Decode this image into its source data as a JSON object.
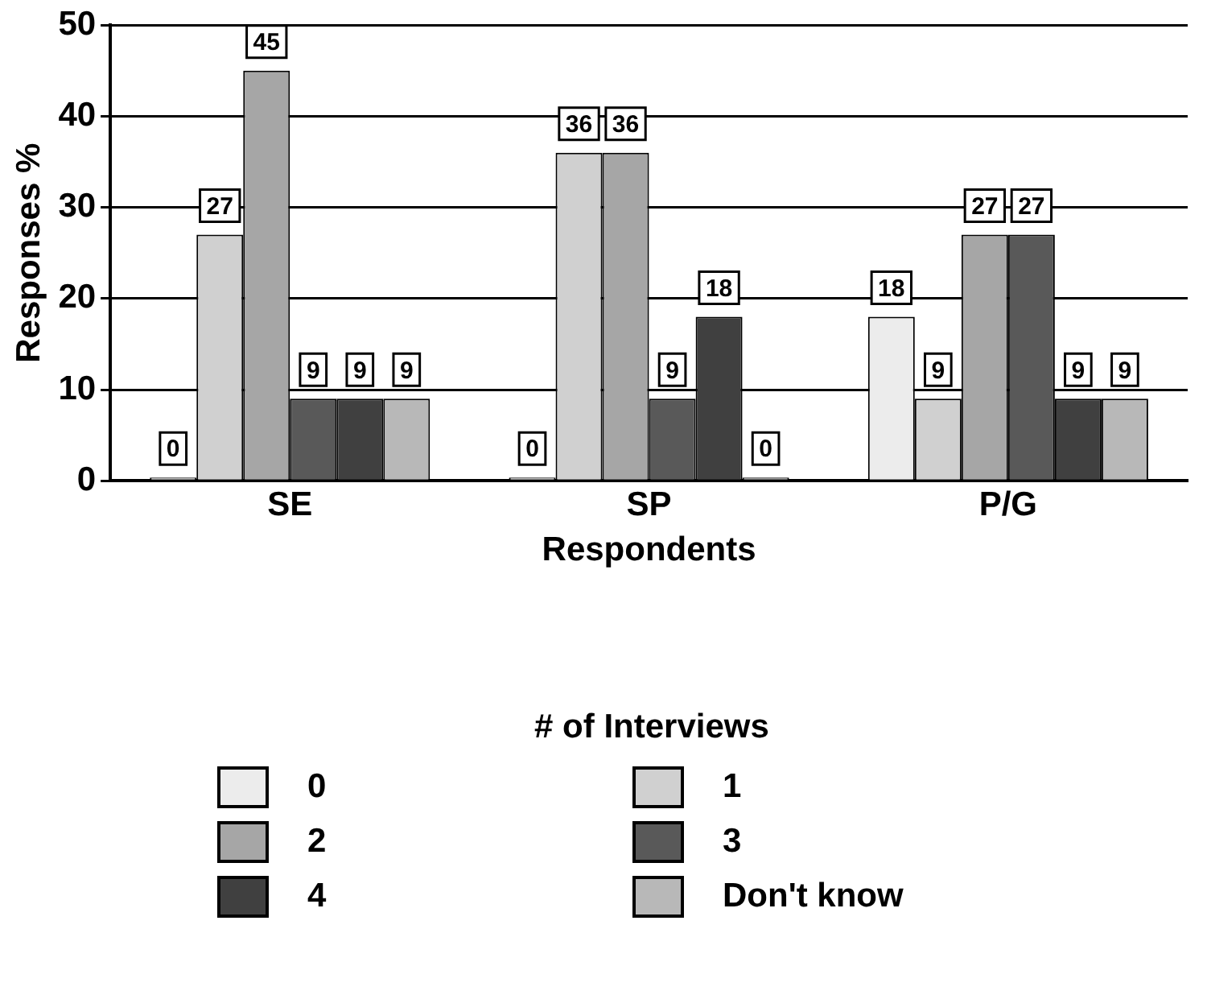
{
  "chart_data": {
    "type": "bar",
    "xlabel": "Respondents",
    "ylabel": "Responses %",
    "legend_title": "# of Interviews",
    "categories": [
      "SE",
      "SP",
      "P/G"
    ],
    "series": [
      {
        "name": "0",
        "color": "#ececec",
        "values": [
          0,
          0,
          18
        ]
      },
      {
        "name": "1",
        "color": "#d0d0d0",
        "values": [
          27,
          36,
          9
        ]
      },
      {
        "name": "2",
        "color": "#a6a6a6",
        "values": [
          45,
          36,
          27
        ]
      },
      {
        "name": "3",
        "color": "#595959",
        "values": [
          9,
          9,
          27
        ]
      },
      {
        "name": "4",
        "color": "#404040",
        "values": [
          9,
          18,
          9
        ]
      },
      {
        "name": "Don't know",
        "color": "#b8b8b8",
        "values": [
          9,
          0,
          9
        ]
      }
    ],
    "ylim": [
      0,
      50
    ],
    "yticks": [
      0,
      10,
      20,
      30,
      40,
      50
    ],
    "grid": "y",
    "legend": "bottom",
    "data_labels": true
  }
}
